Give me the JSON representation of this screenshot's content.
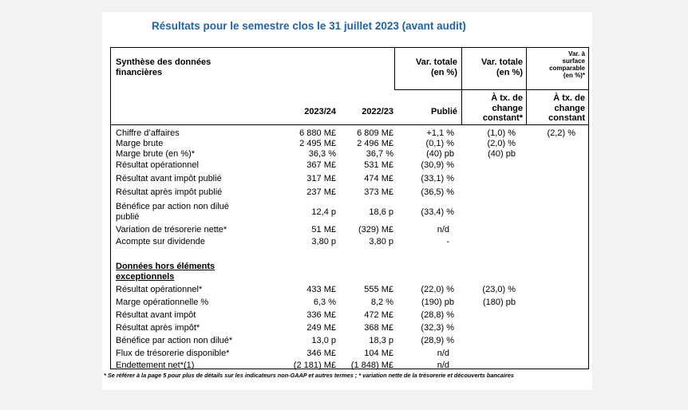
{
  "title": "Résultats pour le semestre clos le 31 juillet 2023 (avant audit)",
  "header": {
    "col1": "Synthèse des données financières",
    "col4": "Var. totale (en %)",
    "col5": "Var. totale (en %)",
    "col6": "Var. à surface comparable (en %)*",
    "year1": "2023/24",
    "year2": "2022/23",
    "publie": "Publié",
    "tx5": "À tx. de change constant*",
    "tx6": "À tx. de change constant"
  },
  "section1": [
    {
      "label": "Chiffre d’affaires",
      "v1": "6 880 M£",
      "v2": "6 809 M£",
      "pub": "+1,1 %",
      "tx": "(1,0) %",
      "sc": "(2,2) %"
    },
    {
      "label": "Marge brute",
      "v1": "2 495 M£",
      "v2": "2 496 M£",
      "pub": "(0,1) %",
      "tx": "(2,0) %",
      "sc": ""
    },
    {
      "label": "Marge brute (en %)*",
      "v1": "36,3 %",
      "v2": "36,7 %",
      "pub": "(40) pb",
      "tx": "(40) pb",
      "sc": ""
    },
    {
      "label": "Résultat opérationnel",
      "v1": "367 M£",
      "v2": "531 M£",
      "pub": "(30,9) %",
      "tx": "",
      "sc": ""
    },
    {
      "label": "Résultat avant impôt publié",
      "v1": "317 M£",
      "v2": "474 M£",
      "pub": "(33,1) %",
      "tx": "",
      "sc": ""
    },
    {
      "label": "Résultat après impôt publié",
      "v1": "237 M£",
      "v2": "373 M£",
      "pub": "(36,5) %",
      "tx": "",
      "sc": ""
    },
    {
      "label": "Bénéfice par action non dilué",
      "label2": "publié",
      "v1": "12,4 p",
      "v2": "18,6 p",
      "pub": "(33,4) %",
      "tx": "",
      "sc": ""
    },
    {
      "label": "Variation de trésorerie nette*",
      "v1": "51 M£",
      "v2": "(329) M£",
      "pub": "n/d",
      "tx": "",
      "sc": ""
    },
    {
      "label": "Acompte sur dividende",
      "v1": "3,80 p",
      "v2": "3,80 p",
      "pub": "-",
      "tx": "",
      "sc": ""
    }
  ],
  "section2_title": "Données hors éléments exceptionnels",
  "section2": [
    {
      "label": "Résultat opérationnel*",
      "v1": "433 M£",
      "v2": "555 M£",
      "pub": "(22,0) %",
      "tx": "(23,0) %",
      "sc": ""
    },
    {
      "label": "Marge opérationnelle %",
      "v1": "6,3 %",
      "v2": "8,2 %",
      "pub": "(190) pb",
      "tx": "(180) pb",
      "sc": ""
    },
    {
      "label": "Résultat avant impôt",
      "v1": "336 M£",
      "v2": "472 M£",
      "pub": "(28,8) %",
      "tx": "",
      "sc": ""
    },
    {
      "label": "Résultat après impôt*",
      "v1": "249 M£",
      "v2": "368 M£",
      "pub": "(32,3) %",
      "tx": "",
      "sc": ""
    },
    {
      "label": "Bénéfice par action non dilué*",
      "v1": "13,0 p",
      "v2": "18,3 p",
      "pub": "(28,9) %",
      "tx": "",
      "sc": ""
    },
    {
      "label": "Flux de trésorerie disponible*",
      "v1": "346 M£",
      "v2": "104 M£",
      "pub": "n/d",
      "tx": "",
      "sc": ""
    },
    {
      "label": "Endettement net*(1)",
      "v1": "(2 181) M£",
      "v2": "(1 848) M£",
      "pub": "n/d",
      "tx": "",
      "sc": ""
    }
  ],
  "footnote": "* Se référer à la page 5 pour plus de détails sur les indicateurs non-GAAP et autres termes ; * variation nette de la trésorerie et découverts bancaires"
}
